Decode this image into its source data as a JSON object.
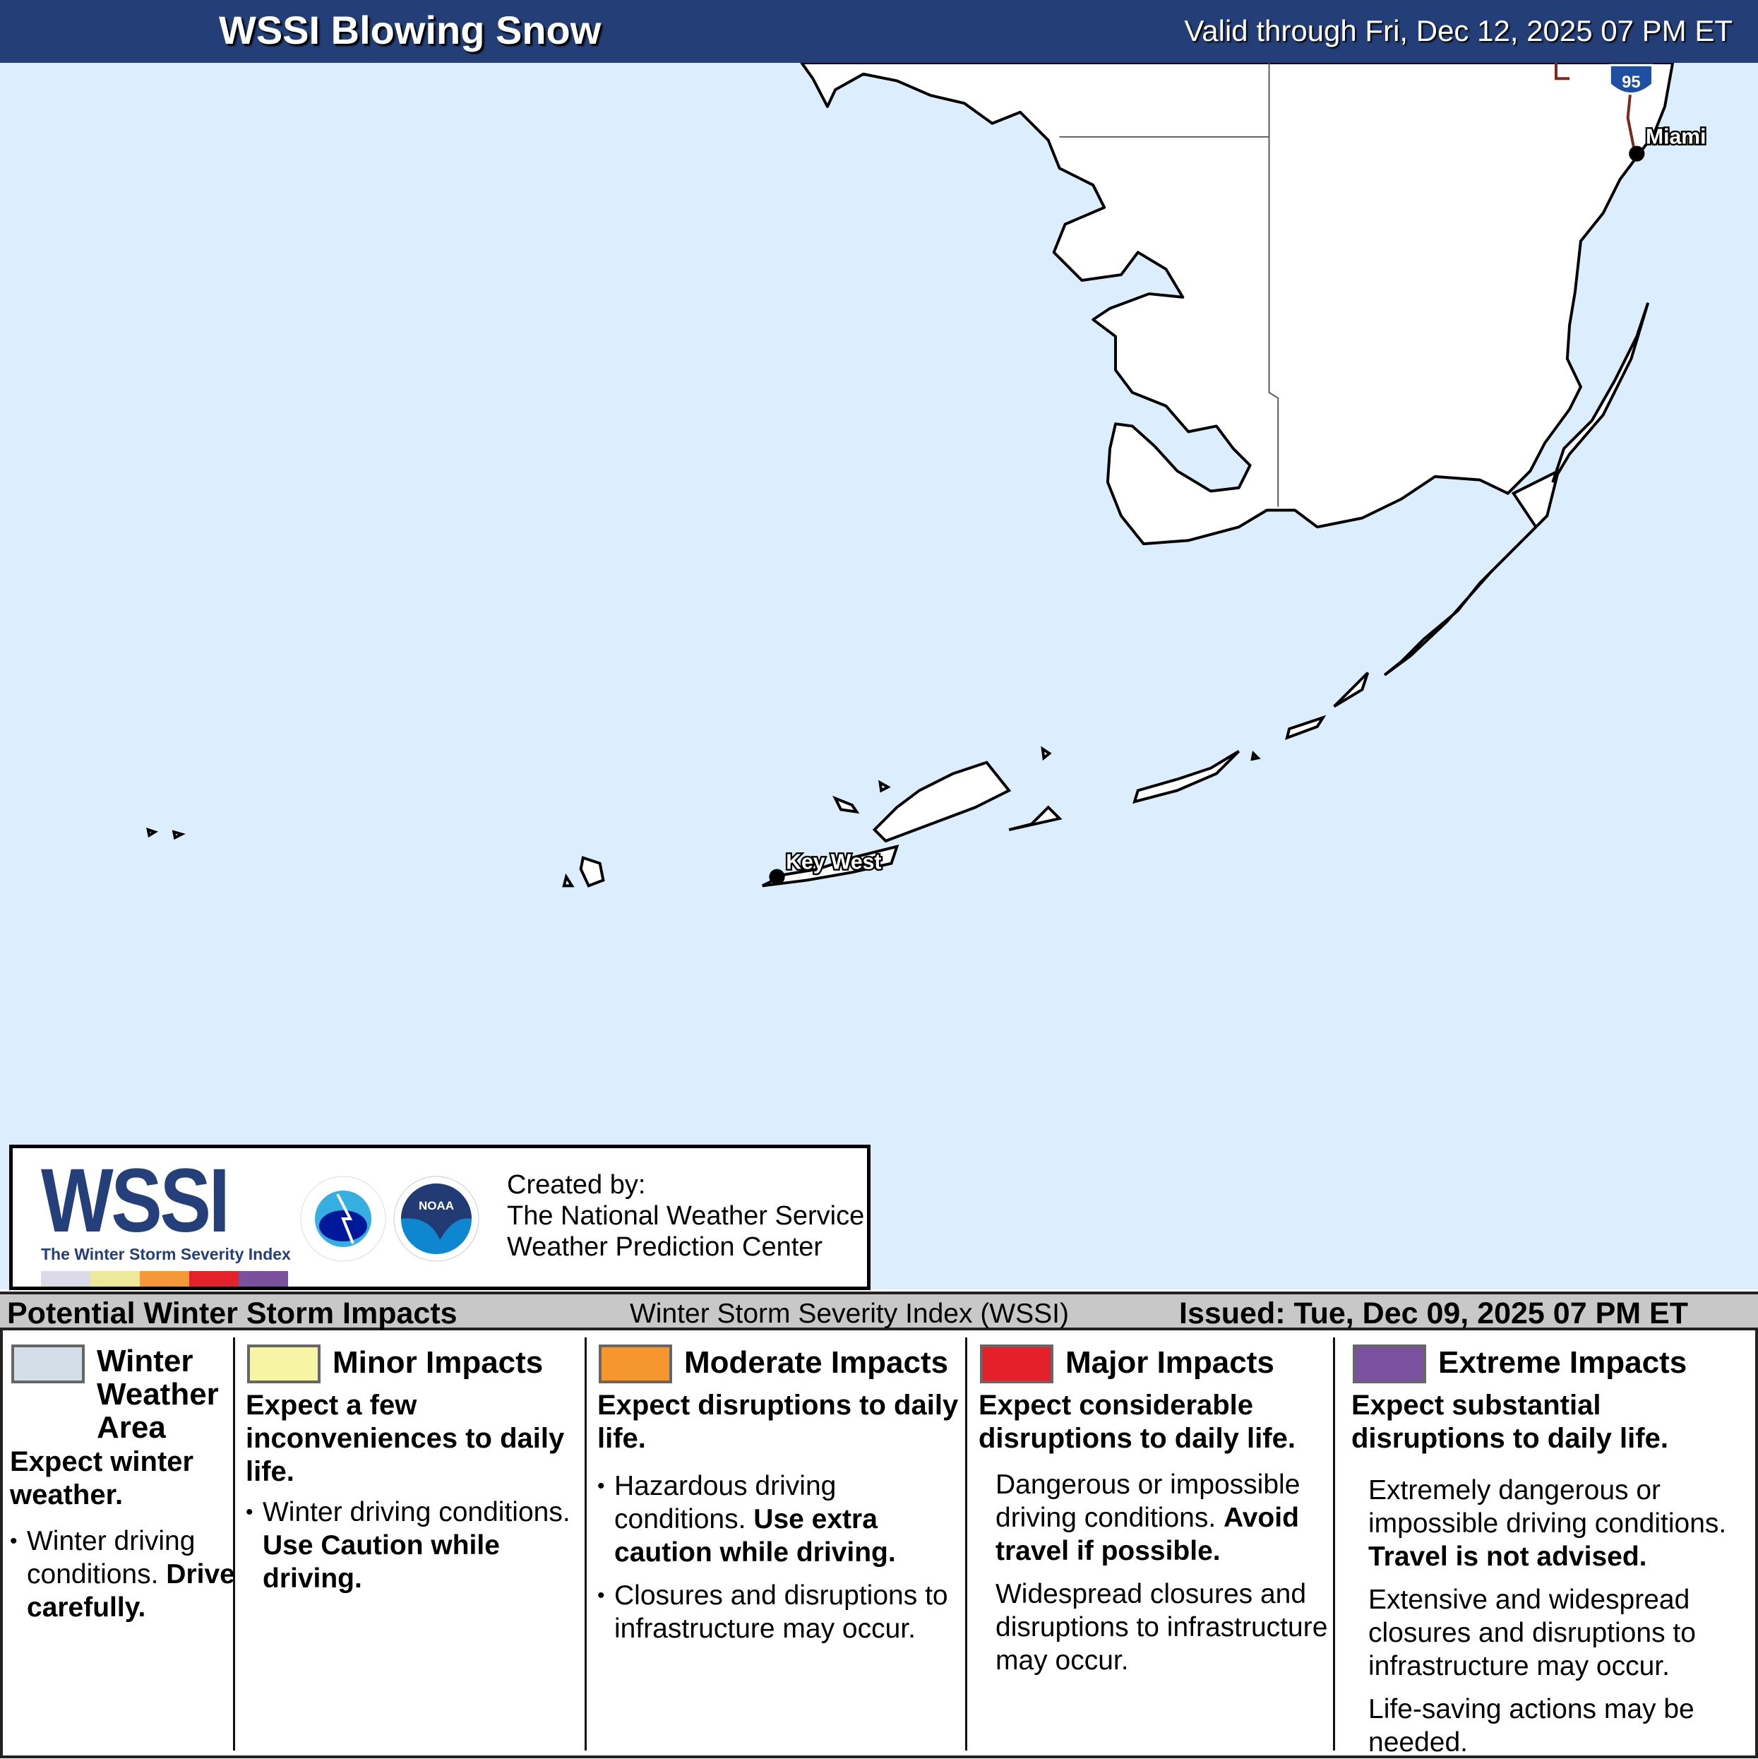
{
  "header": {
    "title": "WSSI Blowing Snow",
    "valid": "Valid through Fri, Dec 12, 2025 07 PM ET"
  },
  "map": {
    "cities": [
      "Miami",
      "Key West"
    ],
    "interstate": "95",
    "colors": {
      "water": "#dcedfd",
      "land": "#ffffff",
      "header": "#243e78"
    }
  },
  "logo": {
    "wssi": "WSSI",
    "tm": "TM",
    "subtitle": "The Winter Storm Severity Index",
    "nws": "NATIONAL WEATHER SERVICE",
    "noaa": "NOAA",
    "created_by": "Created by:",
    "org1": "The National Weather Service",
    "org2": "Weather Prediction Center"
  },
  "bar": {
    "left": "Potential Winter Storm Impacts",
    "mid": "Winter Storm Severity Index (WSSI)",
    "right": "Issued: Tue, Dec 09, 2025 07 PM ET"
  },
  "legend": [
    {
      "title": "Winter Weather Area",
      "color": "#d3dfe8",
      "head": "Expect winter weather.",
      "bullet1": "Winter driving conditions.",
      "bullet1_bold": "Drive carefully."
    },
    {
      "title": "Minor Impacts",
      "color": "#f8f4a6",
      "head": "Expect a few inconveniences to daily life.",
      "bullet1": "Winter driving conditions.",
      "bullet1_bold": "Use Caution while driving."
    },
    {
      "title": "Moderate Impacts",
      "color": "#f6962f",
      "head": "Expect disruptions to daily life.",
      "bullet1": "Hazardous driving conditions.",
      "bullet1_bold": "Use extra caution while driving.",
      "bullet2": "Closures and disruptions to infrastructure may occur."
    },
    {
      "title": "Major Impacts",
      "color": "#e4212a",
      "head": "Expect considerable disruptions to daily life.",
      "p1": "Dangerous or impossible driving conditions.",
      "p1_bold": "Avoid travel if possible.",
      "p2": "Widespread closures and disruptions to infrastructure may occur."
    },
    {
      "title": "Extreme Impacts",
      "color": "#7a519f",
      "head": "Expect substantial disruptions to daily life.",
      "p1": "Extremely dangerous or impossible driving conditions.",
      "p1_bold": "Travel is not advised.",
      "p2": "Extensive and widespread closures and disruptions to infrastructure may occur.",
      "p3": "Life-saving actions may be needed."
    }
  ]
}
